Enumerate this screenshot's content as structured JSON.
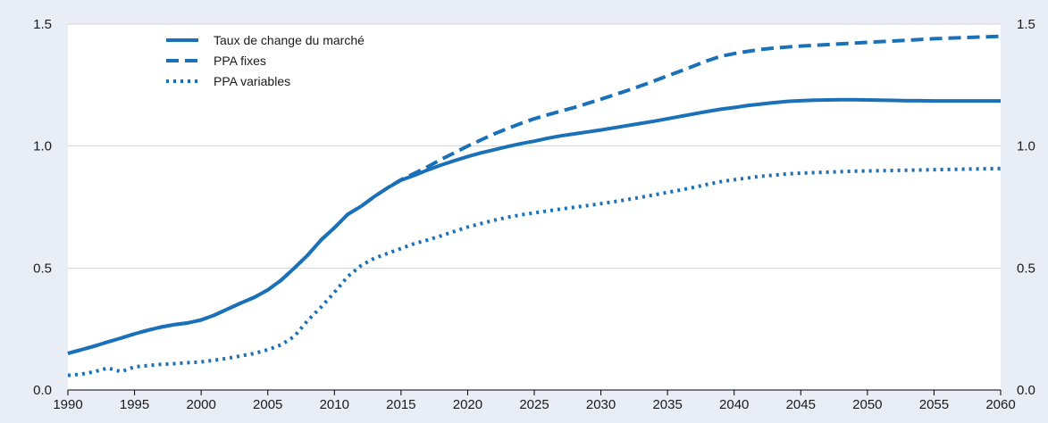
{
  "chart_data": {
    "type": "line",
    "title": "",
    "xlabel": "",
    "ylabel": "",
    "xlim": [
      1990,
      2060
    ],
    "ylim": [
      0,
      1.5
    ],
    "x_ticks": [
      "1990",
      "1995",
      "2000",
      "2005",
      "2010",
      "2015",
      "2020",
      "2025",
      "2030",
      "2035",
      "2040",
      "2045",
      "2050",
      "2055",
      "2060"
    ],
    "y_ticks_left": [
      "0.0",
      "0.5",
      "1.0",
      "1.5"
    ],
    "y_ticks_right": [
      "0.0",
      "0.5",
      "1.0",
      "1.5"
    ],
    "grid": "horizontal",
    "legend_position": "top-left",
    "colors": {
      "series": "#1a71b8",
      "background": "#e8edf6",
      "plot": "#ffffff",
      "grid": "#d3d3d3"
    },
    "x": [
      1990,
      1991,
      1992,
      1993,
      1994,
      1995,
      1996,
      1997,
      1998,
      1999,
      2000,
      2001,
      2002,
      2003,
      2004,
      2005,
      2006,
      2007,
      2008,
      2009,
      2010,
      2011,
      2012,
      2013,
      2014,
      2015,
      2016,
      2017,
      2018,
      2019,
      2020,
      2021,
      2022,
      2023,
      2024,
      2025,
      2026,
      2027,
      2028,
      2029,
      2030,
      2031,
      2032,
      2033,
      2034,
      2035,
      2036,
      2037,
      2038,
      2039,
      2040,
      2041,
      2042,
      2043,
      2044,
      2045,
      2046,
      2047,
      2048,
      2049,
      2050,
      2051,
      2052,
      2053,
      2054,
      2055,
      2056,
      2057,
      2058,
      2059,
      2060
    ],
    "series": [
      {
        "name": "Taux de change du marché",
        "dash": "solid",
        "values": [
          0.15,
          0.165,
          0.18,
          0.197,
          0.213,
          0.23,
          0.245,
          0.258,
          0.268,
          0.275,
          0.287,
          0.307,
          0.332,
          0.357,
          0.38,
          0.41,
          0.45,
          0.5,
          0.553,
          0.615,
          0.665,
          0.72,
          0.753,
          0.793,
          0.829,
          0.86,
          0.88,
          0.902,
          0.922,
          0.94,
          0.957,
          0.972,
          0.985,
          0.998,
          1.01,
          1.02,
          1.032,
          1.042,
          1.05,
          1.058,
          1.066,
          1.075,
          1.084,
          1.093,
          1.102,
          1.112,
          1.122,
          1.132,
          1.142,
          1.151,
          1.158,
          1.166,
          1.172,
          1.178,
          1.183,
          1.186,
          1.188,
          1.189,
          1.19,
          1.19,
          1.189,
          1.188,
          1.187,
          1.186,
          1.186,
          1.185,
          1.185,
          1.185,
          1.185,
          1.185,
          1.185
        ]
      },
      {
        "name": "PPA fixes",
        "dash": "dashed",
        "values": [
          0.15,
          0.165,
          0.18,
          0.197,
          0.213,
          0.23,
          0.245,
          0.258,
          0.268,
          0.275,
          0.287,
          0.307,
          0.332,
          0.357,
          0.38,
          0.41,
          0.45,
          0.5,
          0.553,
          0.615,
          0.665,
          0.72,
          0.753,
          0.793,
          0.829,
          0.862,
          0.888,
          0.915,
          0.945,
          0.972,
          1.0,
          1.025,
          1.05,
          1.072,
          1.093,
          1.112,
          1.128,
          1.143,
          1.158,
          1.175,
          1.192,
          1.21,
          1.228,
          1.247,
          1.267,
          1.288,
          1.308,
          1.329,
          1.35,
          1.368,
          1.379,
          1.388,
          1.396,
          1.402,
          1.406,
          1.41,
          1.413,
          1.416,
          1.419,
          1.422,
          1.425,
          1.428,
          1.431,
          1.434,
          1.437,
          1.44,
          1.442,
          1.444,
          1.446,
          1.448,
          1.45
        ]
      },
      {
        "name": "PPA variables",
        "dash": "dotted",
        "values": [
          0.06,
          0.065,
          0.075,
          0.09,
          0.075,
          0.095,
          0.1,
          0.105,
          0.108,
          0.112,
          0.115,
          0.122,
          0.13,
          0.14,
          0.15,
          0.165,
          0.185,
          0.22,
          0.285,
          0.34,
          0.4,
          0.465,
          0.51,
          0.54,
          0.56,
          0.58,
          0.6,
          0.615,
          0.632,
          0.65,
          0.668,
          0.682,
          0.696,
          0.708,
          0.718,
          0.726,
          0.734,
          0.742,
          0.749,
          0.756,
          0.764,
          0.772,
          0.781,
          0.79,
          0.8,
          0.81,
          0.82,
          0.831,
          0.843,
          0.854,
          0.862,
          0.869,
          0.876,
          0.881,
          0.886,
          0.889,
          0.891,
          0.893,
          0.895,
          0.897,
          0.898,
          0.899,
          0.9,
          0.901,
          0.902,
          0.903,
          0.904,
          0.905,
          0.906,
          0.907,
          0.908
        ]
      }
    ]
  }
}
